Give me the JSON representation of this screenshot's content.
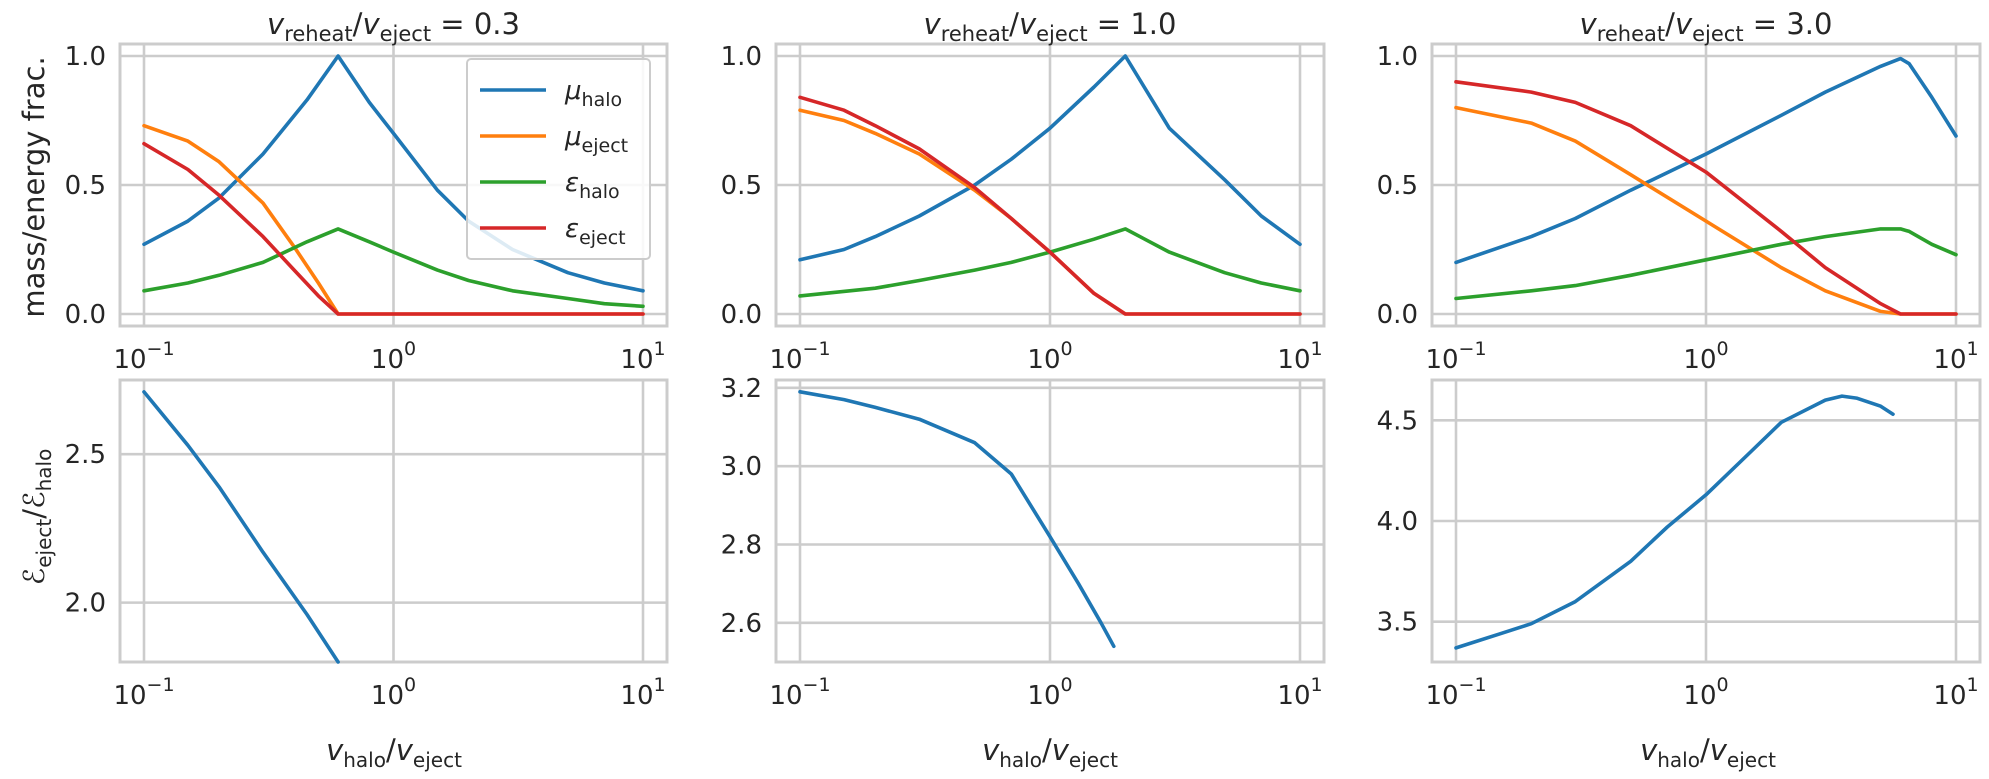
{
  "colors": {
    "mu_halo": "#1f77b4",
    "mu_eject": "#ff7f0e",
    "eps_halo": "#2ca02c",
    "eps_eject": "#d62728"
  },
  "labels": {
    "top_ylabel": "mass/energy frac.",
    "bottom_ylabel_num": "ℰ",
    "bottom_ylabel_num_sub": "eject",
    "bottom_ylabel_den": "ℰ",
    "bottom_ylabel_den_sub": "halo",
    "xlabel_main": "v",
    "xlabel_sub1": "halo",
    "xlabel_sub2": "eject"
  },
  "legend": {
    "entries": [
      {
        "sym": "μ",
        "sub": "halo",
        "color": "#1f77b4"
      },
      {
        "sym": "μ",
        "sub": "eject",
        "color": "#ff7f0e"
      },
      {
        "sym": "ε",
        "sub": "halo",
        "color": "#2ca02c"
      },
      {
        "sym": "ε",
        "sub": "eject",
        "color": "#d62728"
      }
    ]
  },
  "x_ticks": [
    "10",
    "10",
    "10"
  ],
  "x_tick_exps": [
    "−1",
    "0",
    "1"
  ],
  "chart_data": [
    {
      "type": "line",
      "xscale": "log",
      "xlim": [
        0.1,
        10
      ],
      "ylim": [
        0,
        1
      ],
      "title": {
        "v": "v",
        "s1": "reheat",
        "s2": "eject",
        "value": "0.3"
      },
      "yticks": [
        "0.0",
        "0.5",
        "1.0"
      ],
      "series": [
        {
          "key": "mu_halo",
          "points": [
            [
              0.1,
              0.27
            ],
            [
              0.15,
              0.36
            ],
            [
              0.2,
              0.45
            ],
            [
              0.3,
              0.62
            ],
            [
              0.45,
              0.83
            ],
            [
              0.6,
              1.0
            ],
            [
              0.8,
              0.82
            ],
            [
              1.0,
              0.7
            ],
            [
              1.5,
              0.48
            ],
            [
              2,
              0.36
            ],
            [
              3,
              0.25
            ],
            [
              5,
              0.16
            ],
            [
              7,
              0.12
            ],
            [
              10,
              0.09
            ]
          ]
        },
        {
          "key": "mu_eject",
          "points": [
            [
              0.1,
              0.73
            ],
            [
              0.15,
              0.67
            ],
            [
              0.2,
              0.59
            ],
            [
              0.3,
              0.43
            ],
            [
              0.4,
              0.26
            ],
            [
              0.5,
              0.12
            ],
            [
              0.6,
              0.0
            ],
            [
              1.0,
              0.0
            ],
            [
              10,
              0.0
            ]
          ]
        },
        {
          "key": "eps_halo",
          "points": [
            [
              0.1,
              0.09
            ],
            [
              0.15,
              0.12
            ],
            [
              0.2,
              0.15
            ],
            [
              0.3,
              0.2
            ],
            [
              0.45,
              0.28
            ],
            [
              0.6,
              0.33
            ],
            [
              0.8,
              0.28
            ],
            [
              1.0,
              0.24
            ],
            [
              1.5,
              0.17
            ],
            [
              2,
              0.13
            ],
            [
              3,
              0.09
            ],
            [
              5,
              0.06
            ],
            [
              7,
              0.04
            ],
            [
              10,
              0.03
            ]
          ]
        },
        {
          "key": "eps_eject",
          "points": [
            [
              0.1,
              0.66
            ],
            [
              0.15,
              0.56
            ],
            [
              0.2,
              0.46
            ],
            [
              0.3,
              0.3
            ],
            [
              0.4,
              0.17
            ],
            [
              0.5,
              0.07
            ],
            [
              0.6,
              0.0
            ],
            [
              1.0,
              0.0
            ],
            [
              10,
              0.0
            ]
          ]
        }
      ]
    },
    {
      "type": "line",
      "xscale": "log",
      "xlim": [
        0.1,
        10
      ],
      "ylim": [
        0,
        1
      ],
      "title": {
        "v": "v",
        "s1": "reheat",
        "s2": "eject",
        "value": "1.0"
      },
      "yticks": [
        "0.0",
        "0.5",
        "1.0"
      ],
      "series": [
        {
          "key": "mu_halo",
          "points": [
            [
              0.1,
              0.21
            ],
            [
              0.15,
              0.25
            ],
            [
              0.2,
              0.3
            ],
            [
              0.3,
              0.38
            ],
            [
              0.5,
              0.5
            ],
            [
              0.7,
              0.6
            ],
            [
              1.0,
              0.72
            ],
            [
              1.5,
              0.88
            ],
            [
              2,
              1.0
            ],
            [
              3,
              0.72
            ],
            [
              5,
              0.52
            ],
            [
              7,
              0.38
            ],
            [
              10,
              0.27
            ]
          ]
        },
        {
          "key": "mu_eject",
          "points": [
            [
              0.1,
              0.79
            ],
            [
              0.15,
              0.75
            ],
            [
              0.2,
              0.7
            ],
            [
              0.3,
              0.62
            ],
            [
              0.5,
              0.48
            ],
            [
              0.7,
              0.37
            ],
            [
              1.0,
              0.24
            ],
            [
              1.5,
              0.08
            ],
            [
              2,
              0.0
            ],
            [
              3,
              0.0
            ],
            [
              10,
              0.0
            ]
          ]
        },
        {
          "key": "eps_halo",
          "points": [
            [
              0.1,
              0.07
            ],
            [
              0.2,
              0.1
            ],
            [
              0.3,
              0.13
            ],
            [
              0.5,
              0.17
            ],
            [
              0.7,
              0.2
            ],
            [
              1.0,
              0.24
            ],
            [
              1.5,
              0.29
            ],
            [
              2,
              0.33
            ],
            [
              3,
              0.24
            ],
            [
              5,
              0.16
            ],
            [
              7,
              0.12
            ],
            [
              10,
              0.09
            ]
          ]
        },
        {
          "key": "eps_eject",
          "points": [
            [
              0.1,
              0.84
            ],
            [
              0.15,
              0.79
            ],
            [
              0.2,
              0.73
            ],
            [
              0.3,
              0.64
            ],
            [
              0.5,
              0.49
            ],
            [
              0.7,
              0.37
            ],
            [
              1.0,
              0.24
            ],
            [
              1.5,
              0.08
            ],
            [
              2,
              0.0
            ],
            [
              3,
              0.0
            ],
            [
              10,
              0.0
            ]
          ]
        }
      ]
    },
    {
      "type": "line",
      "xscale": "log",
      "xlim": [
        0.1,
        10
      ],
      "ylim": [
        0,
        1
      ],
      "title": {
        "v": "v",
        "s1": "reheat",
        "s2": "eject",
        "value": "3.0"
      },
      "yticks": [
        "0.0",
        "0.5",
        "1.0"
      ],
      "series": [
        {
          "key": "mu_halo",
          "points": [
            [
              0.1,
              0.2
            ],
            [
              0.2,
              0.3
            ],
            [
              0.3,
              0.37
            ],
            [
              0.5,
              0.48
            ],
            [
              1.0,
              0.62
            ],
            [
              2,
              0.77
            ],
            [
              3,
              0.86
            ],
            [
              5,
              0.96
            ],
            [
              6,
              0.99
            ],
            [
              6.5,
              0.97
            ],
            [
              8,
              0.84
            ],
            [
              10,
              0.69
            ]
          ]
        },
        {
          "key": "mu_eject",
          "points": [
            [
              0.1,
              0.8
            ],
            [
              0.2,
              0.74
            ],
            [
              0.3,
              0.67
            ],
            [
              0.5,
              0.54
            ],
            [
              1.0,
              0.36
            ],
            [
              2,
              0.18
            ],
            [
              3,
              0.09
            ],
            [
              5,
              0.01
            ],
            [
              6,
              0.0
            ],
            [
              10,
              0.0
            ]
          ]
        },
        {
          "key": "eps_halo",
          "points": [
            [
              0.1,
              0.06
            ],
            [
              0.2,
              0.09
            ],
            [
              0.3,
              0.11
            ],
            [
              0.5,
              0.15
            ],
            [
              1.0,
              0.21
            ],
            [
              2,
              0.27
            ],
            [
              3,
              0.3
            ],
            [
              5,
              0.33
            ],
            [
              6,
              0.33
            ],
            [
              6.5,
              0.32
            ],
            [
              8,
              0.27
            ],
            [
              10,
              0.23
            ]
          ]
        },
        {
          "key": "eps_eject",
          "points": [
            [
              0.1,
              0.9
            ],
            [
              0.2,
              0.86
            ],
            [
              0.3,
              0.82
            ],
            [
              0.5,
              0.73
            ],
            [
              1.0,
              0.55
            ],
            [
              2,
              0.32
            ],
            [
              3,
              0.18
            ],
            [
              5,
              0.04
            ],
            [
              6,
              0.0
            ],
            [
              7,
              0.0
            ],
            [
              10,
              0.0
            ]
          ]
        }
      ]
    },
    {
      "type": "line",
      "xscale": "log",
      "xlim": [
        0.1,
        10
      ],
      "ylim": [
        1.8,
        2.75
      ],
      "yticks_v": [
        2.0,
        2.5
      ],
      "yticks": [
        "2.0",
        "2.5"
      ],
      "series": [
        {
          "key": "mu_halo",
          "points": [
            [
              0.1,
              2.71
            ],
            [
              0.15,
              2.53
            ],
            [
              0.2,
              2.39
            ],
            [
              0.3,
              2.17
            ],
            [
              0.45,
              1.96
            ],
            [
              0.6,
              1.8
            ]
          ]
        }
      ]
    },
    {
      "type": "line",
      "xscale": "log",
      "xlim": [
        0.1,
        10
      ],
      "ylim": [
        2.5,
        3.22
      ],
      "yticks_v": [
        2.6,
        2.8,
        3.0,
        3.2
      ],
      "yticks": [
        "2.6",
        "2.8",
        "3.0",
        "3.2"
      ],
      "series": [
        {
          "key": "mu_halo",
          "points": [
            [
              0.1,
              3.19
            ],
            [
              0.15,
              3.17
            ],
            [
              0.2,
              3.15
            ],
            [
              0.3,
              3.12
            ],
            [
              0.5,
              3.06
            ],
            [
              0.7,
              2.98
            ],
            [
              1.0,
              2.82
            ],
            [
              1.3,
              2.7
            ],
            [
              1.6,
              2.6
            ],
            [
              1.8,
              2.54
            ]
          ]
        }
      ]
    },
    {
      "type": "line",
      "xscale": "log",
      "xlim": [
        0.1,
        10
      ],
      "ylim": [
        3.3,
        4.7
      ],
      "yticks_v": [
        3.5,
        4.0,
        4.5
      ],
      "yticks": [
        "3.5",
        "4.0",
        "4.5"
      ],
      "series": [
        {
          "key": "mu_halo",
          "points": [
            [
              0.1,
              3.37
            ],
            [
              0.15,
              3.44
            ],
            [
              0.2,
              3.49
            ],
            [
              0.3,
              3.6
            ],
            [
              0.5,
              3.8
            ],
            [
              0.7,
              3.97
            ],
            [
              1.0,
              4.13
            ],
            [
              1.5,
              4.34
            ],
            [
              2,
              4.49
            ],
            [
              3,
              4.6
            ],
            [
              3.5,
              4.62
            ],
            [
              4,
              4.61
            ],
            [
              5,
              4.57
            ],
            [
              5.6,
              4.53
            ]
          ]
        }
      ]
    }
  ]
}
